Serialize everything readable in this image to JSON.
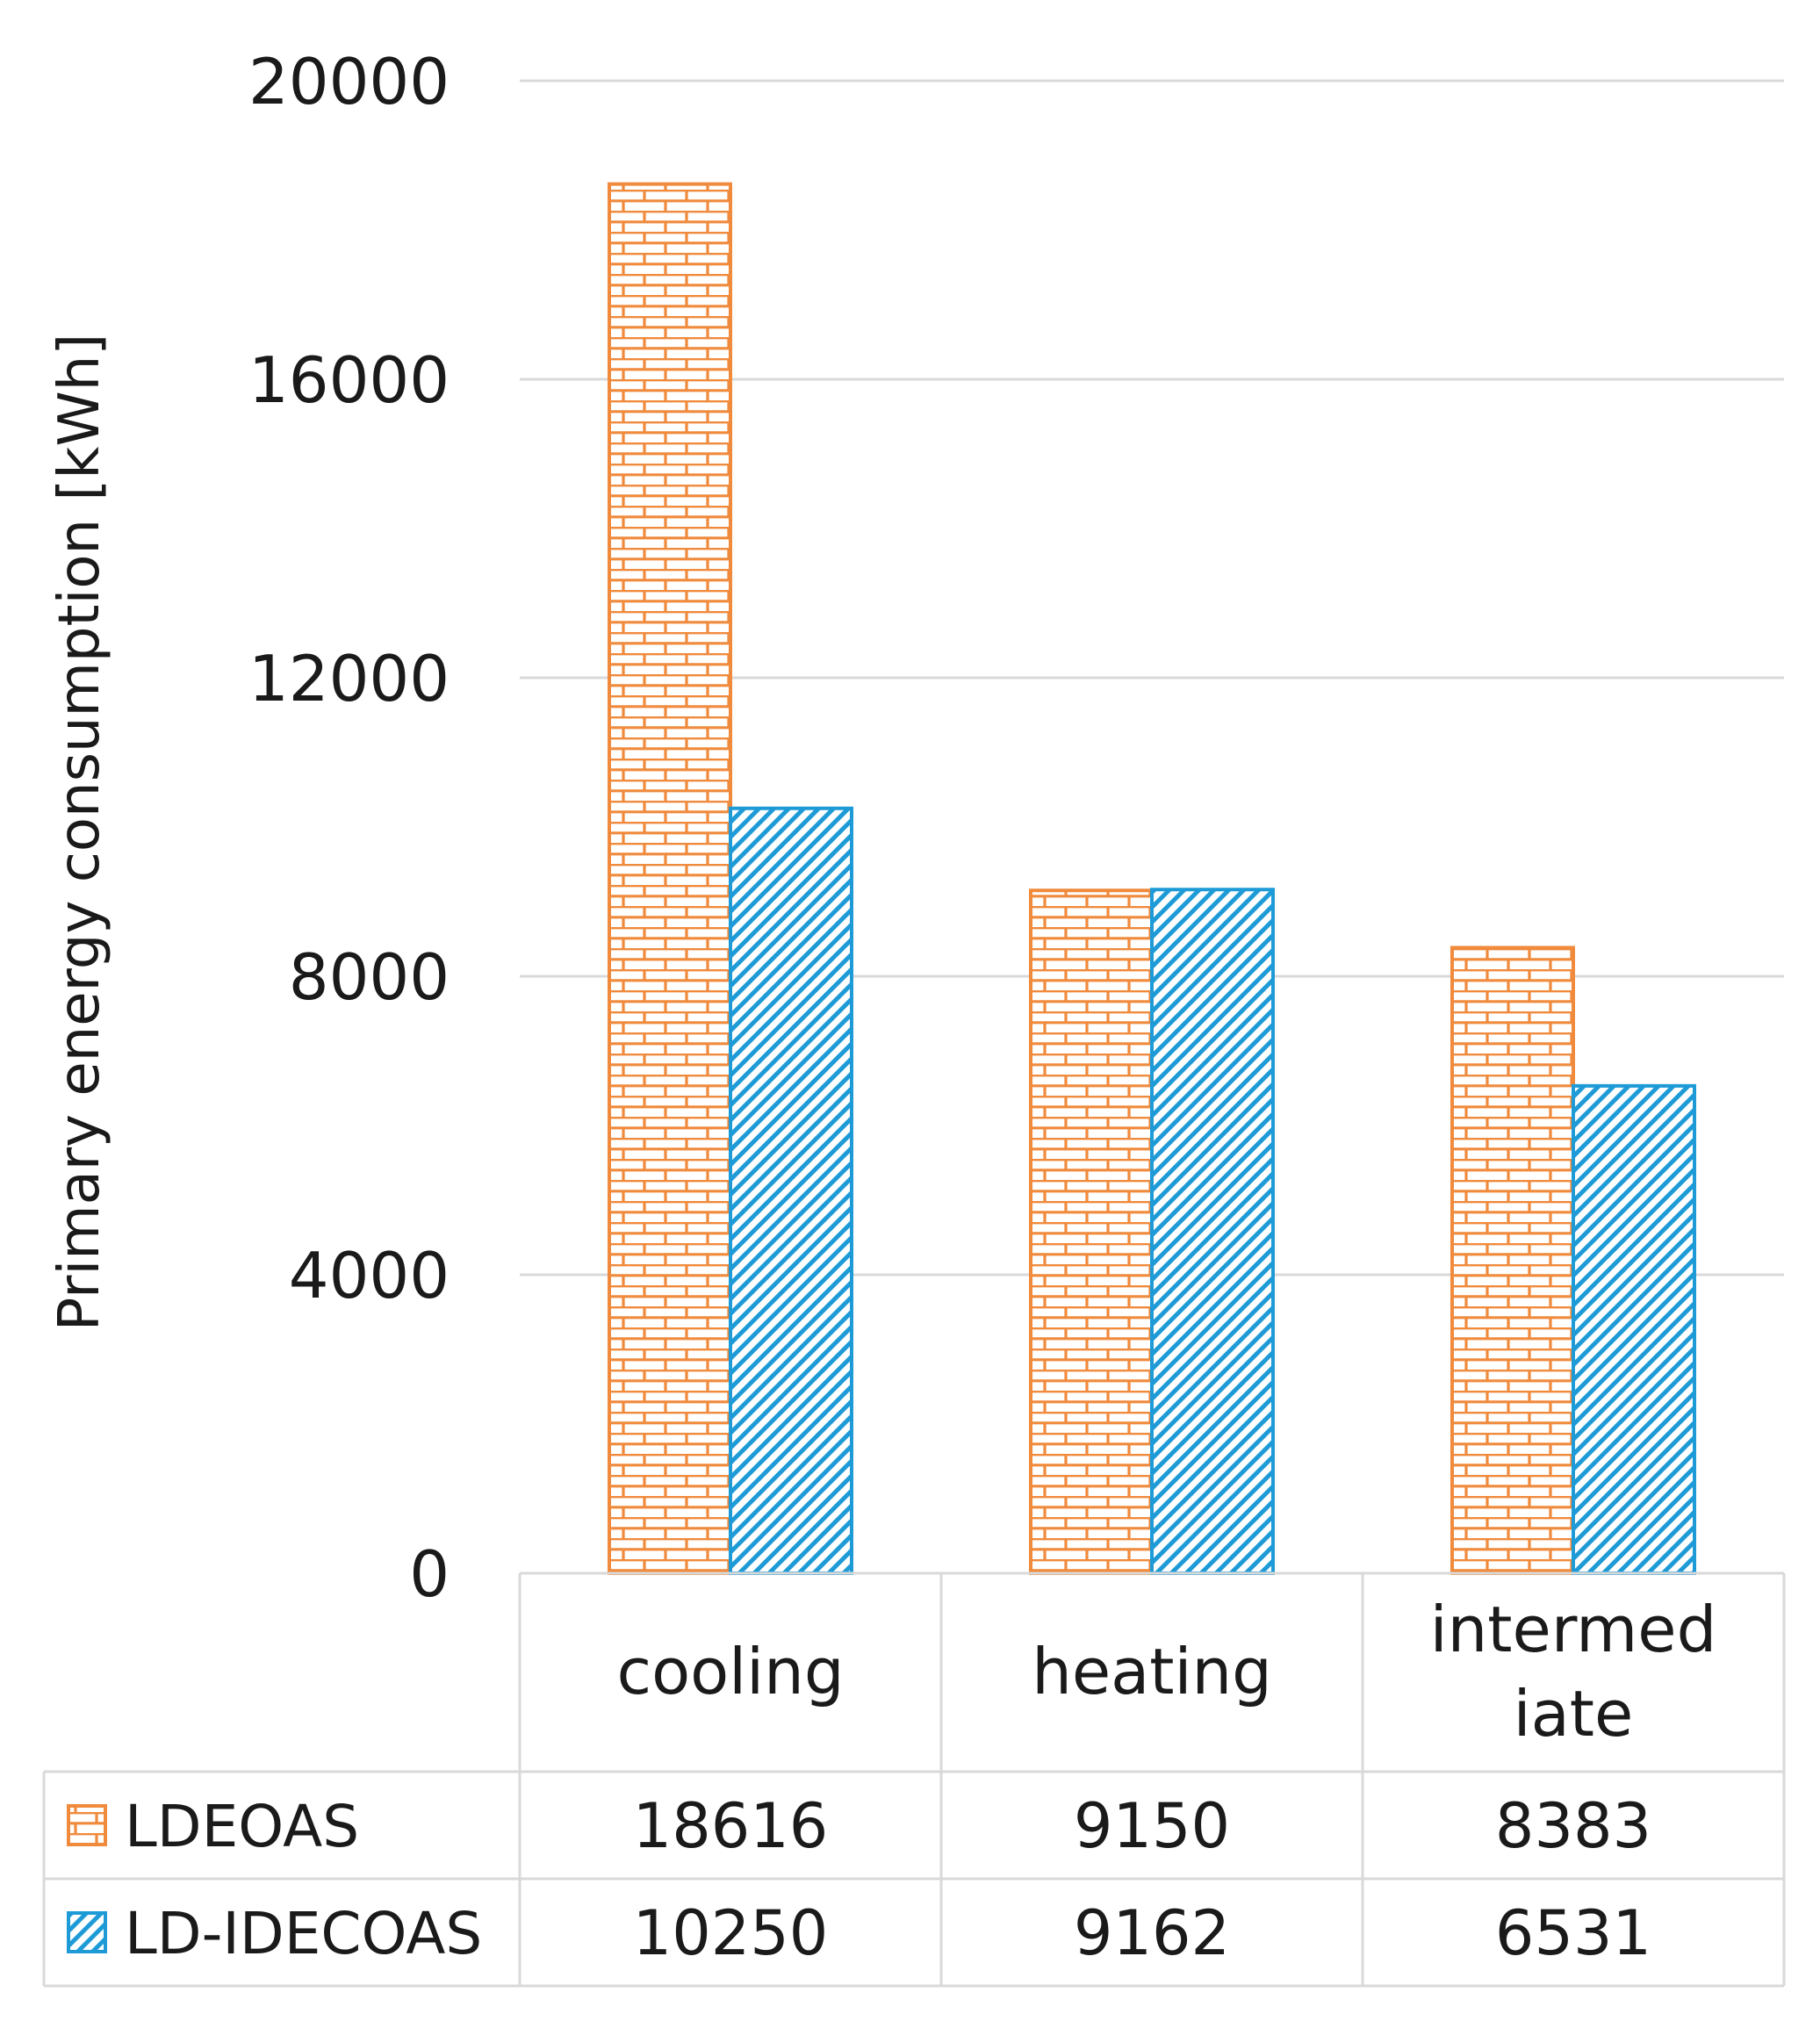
{
  "chart_data": {
    "type": "bar",
    "title": "",
    "xlabel": "",
    "ylabel": "Primary energy consumption [kWh]",
    "ylim": [
      0,
      20000
    ],
    "yticks": [
      0,
      4000,
      8000,
      12000,
      16000,
      20000
    ],
    "categories": [
      {
        "lines": [
          "cooling"
        ]
      },
      {
        "lines": [
          "heating"
        ]
      },
      {
        "lines": [
          "intermed",
          "iate"
        ]
      }
    ],
    "series": [
      {
        "name": "LDEOAS",
        "color": "#F08A3C",
        "pattern": "brick",
        "values": [
          18616,
          9150,
          8383
        ]
      },
      {
        "name": "LD-IDECOAS",
        "color": "#1E9BD7",
        "pattern": "diagonal",
        "values": [
          10250,
          9162,
          6531
        ]
      }
    ],
    "grid": true,
    "legend": "data-table"
  }
}
